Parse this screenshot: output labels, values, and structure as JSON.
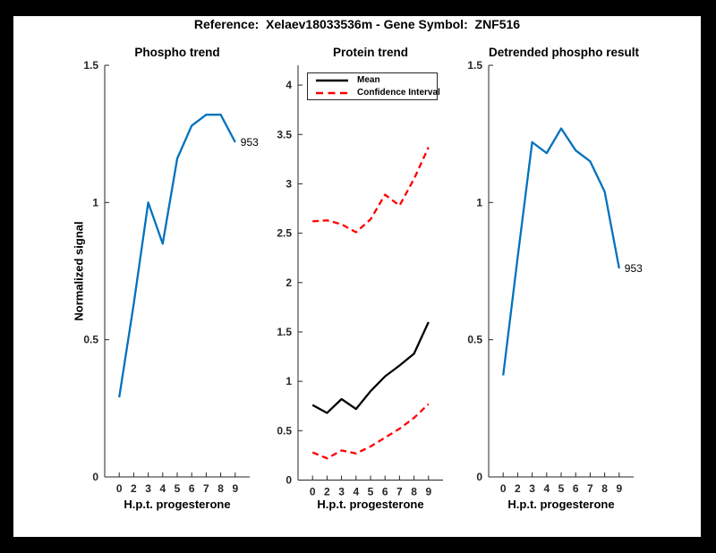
{
  "window": {
    "background": "#000000",
    "canvas": "#ffffff"
  },
  "header": {
    "title": "Reference:  Xelaev18033536m - Gene Symbol:  ZNF516"
  },
  "colors": {
    "blue": "#0072BD",
    "red": "#FF0000",
    "mean_black": "#000000",
    "axis": "#262626",
    "text": "#000000"
  },
  "chart_data": [
    {
      "type": "line",
      "title": "Phospho trend",
      "xlabel": "H.p.t. progesterone",
      "ylabel": "Normalized signal",
      "categories": [
        "0",
        "2",
        "3",
        "4",
        "5",
        "6",
        "7",
        "8",
        "9"
      ],
      "series": [
        {
          "name": "phospho-signal-line",
          "color": "#0072BD",
          "style": "solid",
          "values": [
            0.29,
            0.63,
            1.0,
            0.85,
            1.16,
            1.28,
            1.32,
            1.32,
            1.22
          ]
        }
      ],
      "endpoint_label": "953",
      "ylim": [
        0,
        1.5
      ],
      "yticks": [
        "0",
        "0.5",
        "1",
        "1.5"
      ],
      "grid": false,
      "legend": null
    },
    {
      "type": "line",
      "title": "Protein trend",
      "xlabel": "H.p.t. progesterone",
      "ylabel": "",
      "categories": [
        "0",
        "2",
        "3",
        "4",
        "5",
        "6",
        "7",
        "8",
        "9"
      ],
      "series": [
        {
          "name": "mean-line",
          "color": "#000000",
          "style": "solid",
          "values": [
            0.76,
            0.68,
            0.82,
            0.72,
            0.9,
            1.05,
            1.16,
            1.28,
            1.6
          ]
        },
        {
          "name": "confidence-interval-upper-line",
          "color": "#FF0000",
          "style": "dashed",
          "values": [
            2.62,
            2.63,
            2.59,
            2.51,
            2.64,
            2.89,
            2.78,
            3.05,
            3.37
          ]
        },
        {
          "name": "confidence-interval-lower-line",
          "color": "#FF0000",
          "style": "dashed",
          "values": [
            0.28,
            0.22,
            0.3,
            0.27,
            0.34,
            0.43,
            0.52,
            0.63,
            0.77
          ]
        }
      ],
      "endpoint_label": null,
      "ylim": [
        0,
        4.2
      ],
      "yticks": [
        "0",
        "0.5",
        "1",
        "1.5",
        "2",
        "2.5",
        "3",
        "3.5",
        "4"
      ],
      "grid": false,
      "legend": {
        "position": "northwest",
        "entries": [
          {
            "label": "Mean",
            "style": "solid",
            "color": "#000000"
          },
          {
            "label": "Confidence Interval",
            "style": "dashed",
            "color": "#FF0000"
          }
        ]
      }
    },
    {
      "type": "line",
      "title": "Detrended phospho result",
      "xlabel": "H.p.t. progesterone",
      "ylabel": "",
      "categories": [
        "0",
        "2",
        "3",
        "4",
        "5",
        "6",
        "7",
        "8",
        "9"
      ],
      "series": [
        {
          "name": "detrended-phospho-line",
          "color": "#0072BD",
          "style": "solid",
          "values": [
            0.37,
            0.8,
            1.22,
            1.18,
            1.27,
            1.19,
            1.15,
            1.04,
            0.76
          ]
        }
      ],
      "endpoint_label": "953",
      "ylim": [
        0,
        1.5
      ],
      "yticks": [
        "0",
        "0.5",
        "1",
        "1.5"
      ],
      "grid": false,
      "legend": null
    }
  ]
}
